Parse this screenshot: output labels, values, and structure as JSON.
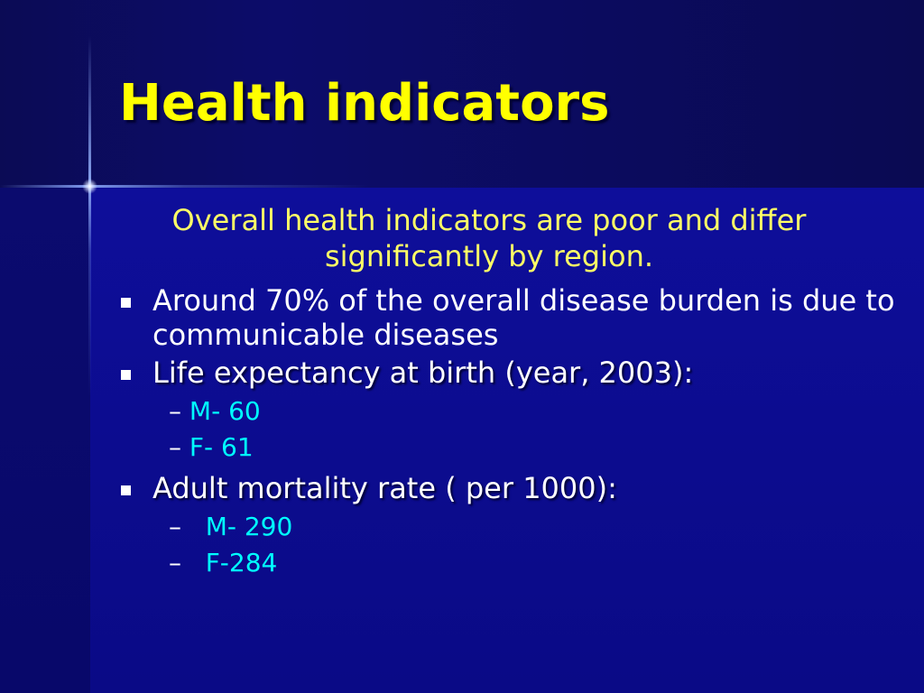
{
  "slide": {
    "title": "Health indicators",
    "intro": "Overall health indicators are poor and differ significantly by region.",
    "bullets": [
      {
        "text": "Around 70% of the overall disease burden is due to communicable diseases",
        "subs": []
      },
      {
        "text": "Life expectancy at birth (year, 2003):",
        "subs": [
          {
            "dash": "– ",
            "text": "M- 60"
          },
          {
            "dash": "– ",
            "text": "F- 61"
          }
        ]
      },
      {
        "text": "Adult mortality rate ( per 1000):",
        "subs": [
          {
            "dash": "–   ",
            "text": "M- 290"
          },
          {
            "dash": "–   ",
            "text": "F-284"
          }
        ]
      }
    ]
  },
  "colors": {
    "title": "#ffff00",
    "intro": "#ffff66",
    "bullet_text": "#ffffff",
    "sub_text": "#00ffff",
    "background": "#0a0a8c"
  },
  "icons": {
    "bullet": "square-bullet-icon",
    "sub_bullet": "en-dash"
  }
}
